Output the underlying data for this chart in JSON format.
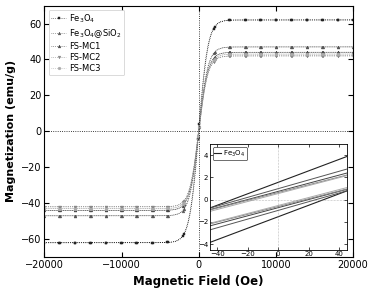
{
  "title": "",
  "xlabel": "Magnetic Field (Oe)",
  "ylabel": "Magnetization (emu/g)",
  "xlim": [
    -20000,
    20000
  ],
  "ylim": [
    -70,
    70
  ],
  "xticks": [
    -20000,
    -10000,
    0,
    10000,
    20000
  ],
  "yticks": [
    -60,
    -40,
    -20,
    0,
    20,
    40,
    60
  ],
  "series": [
    {
      "label": "Fe$_3$O$_4$",
      "Ms": 62,
      "Hc": 30,
      "k": 1200,
      "color": "#222222",
      "marker": "s",
      "markersize": 2.0,
      "linewidth": 0.5,
      "linestyle": ":"
    },
    {
      "label": "Fe$_3$O$_4$@SiO$_2$",
      "Ms": 47,
      "Hc": 25,
      "k": 1200,
      "color": "#555555",
      "marker": "^",
      "markersize": 2.0,
      "linewidth": 0.5,
      "linestyle": ":"
    },
    {
      "label": "FS-MC1",
      "Ms": 44,
      "Hc": 20,
      "k": 1200,
      "color": "#444444",
      "marker": "^",
      "markersize": 2.0,
      "linewidth": 0.5,
      "linestyle": ":"
    },
    {
      "label": "FS-MC2",
      "Ms": 42,
      "Hc": 18,
      "k": 1200,
      "color": "#888888",
      "marker": "v",
      "markersize": 2.0,
      "linewidth": 0.5,
      "linestyle": ":"
    },
    {
      "label": "FS-MC3",
      "Ms": 43,
      "Hc": 15,
      "k": 1200,
      "color": "#aaaaaa",
      "marker": "o",
      "markersize": 2.0,
      "linewidth": 0.5,
      "linestyle": ":"
    }
  ],
  "inset": {
    "xlim": [
      -45,
      45
    ],
    "ylim": [
      -4.5,
      5.0
    ],
    "xticks": [
      -40,
      -20,
      0,
      20,
      40
    ],
    "yticks": [
      -4,
      -2,
      0,
      2,
      4
    ],
    "label": "Fe$_3$O$_4$",
    "color": "#222222"
  },
  "background_color": "#ffffff"
}
